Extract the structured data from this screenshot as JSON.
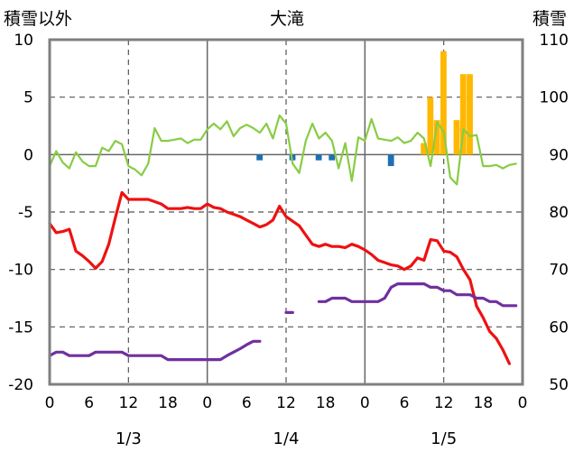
{
  "chart_data": {
    "type": "line",
    "title": "大滝",
    "left_axis_label": "積雪以外",
    "right_axis_label": "積雪",
    "left_ylim": [
      -20,
      10
    ],
    "left_ticks": [
      10,
      5,
      0,
      -5,
      -10,
      -15,
      -20
    ],
    "right_ylim": [
      50,
      110
    ],
    "right_ticks": [
      110,
      100,
      90,
      80,
      70,
      60,
      50
    ],
    "x_hours_range": [
      0,
      72
    ],
    "x_tick_labels": [
      "0",
      "6",
      "12",
      "18",
      "0",
      "6",
      "12",
      "18",
      "0",
      "6",
      "12",
      "18",
      "0"
    ],
    "date_labels": [
      {
        "label": "1/3",
        "hour": 12
      },
      {
        "label": "1/4",
        "hour": 36
      },
      {
        "label": "1/5",
        "hour": 60
      }
    ],
    "colors": {
      "red": "#ee1111",
      "green": "#88cc44",
      "purple": "#7030a0",
      "blue": "#1f6fb4",
      "orange": "#ffb800",
      "frame": "#7f7f7f"
    },
    "series": [
      {
        "color": "red",
        "axis": "left",
        "points": [
          [
            0,
            -6.0
          ],
          [
            1,
            -6.8
          ],
          [
            2,
            -6.7
          ],
          [
            3,
            -6.5
          ],
          [
            4,
            -8.4
          ],
          [
            5,
            -8.8
          ],
          [
            6,
            -9.3
          ],
          [
            7,
            -9.9
          ],
          [
            8,
            -9.3
          ],
          [
            9,
            -7.8
          ],
          [
            10,
            -5.5
          ],
          [
            11,
            -3.3
          ],
          [
            12,
            -3.9
          ],
          [
            13,
            -3.9
          ],
          [
            14,
            -3.9
          ],
          [
            15,
            -3.9
          ],
          [
            16,
            -4.1
          ],
          [
            17,
            -4.3
          ],
          [
            18,
            -4.7
          ],
          [
            19,
            -4.7
          ],
          [
            20,
            -4.7
          ],
          [
            21,
            -4.6
          ],
          [
            22,
            -4.7
          ],
          [
            23,
            -4.7
          ],
          [
            24,
            -4.3
          ],
          [
            25,
            -4.6
          ],
          [
            26,
            -4.7
          ],
          [
            27,
            -5.0
          ],
          [
            28,
            -5.2
          ],
          [
            29,
            -5.4
          ],
          [
            30,
            -5.7
          ],
          [
            31,
            -6.0
          ],
          [
            32,
            -6.3
          ],
          [
            33,
            -6.1
          ],
          [
            34,
            -5.7
          ],
          [
            35,
            -4.5
          ],
          [
            36,
            -5.4
          ],
          [
            37,
            -5.8
          ],
          [
            38,
            -6.2
          ],
          [
            39,
            -7.0
          ],
          [
            40,
            -7.8
          ],
          [
            41,
            -8.0
          ],
          [
            42,
            -7.8
          ],
          [
            43,
            -8.0
          ],
          [
            44,
            -8.0
          ],
          [
            45,
            -8.1
          ],
          [
            46,
            -7.8
          ],
          [
            47,
            -8.0
          ],
          [
            48,
            -8.3
          ],
          [
            49,
            -8.7
          ],
          [
            50,
            -9.2
          ],
          [
            51,
            -9.4
          ],
          [
            52,
            -9.6
          ],
          [
            53,
            -9.7
          ],
          [
            54,
            -10.0
          ],
          [
            55,
            -9.7
          ],
          [
            56,
            -9.0
          ],
          [
            57,
            -9.2
          ],
          [
            58,
            -7.4
          ],
          [
            59,
            -7.5
          ],
          [
            60,
            -8.4
          ],
          [
            61,
            -8.5
          ],
          [
            62,
            -8.9
          ],
          [
            63,
            -10.0
          ],
          [
            64,
            -10.9
          ],
          [
            65,
            -13.2
          ],
          [
            66,
            -14.2
          ],
          [
            67,
            -15.4
          ],
          [
            68,
            -16.0
          ],
          [
            69,
            -17.0
          ],
          [
            70,
            -18.2
          ]
        ]
      },
      {
        "color": "green",
        "axis": "left",
        "points": [
          [
            0,
            -1.0
          ],
          [
            1,
            0.3
          ],
          [
            2,
            -0.7
          ],
          [
            3,
            -1.2
          ],
          [
            4,
            0.2
          ],
          [
            5,
            -0.6
          ],
          [
            6,
            -1.0
          ],
          [
            7,
            -1.0
          ],
          [
            8,
            0.6
          ],
          [
            9,
            0.3
          ],
          [
            10,
            1.2
          ],
          [
            11,
            0.9
          ],
          [
            12,
            -1.0
          ],
          [
            13,
            -1.3
          ],
          [
            14,
            -1.8
          ],
          [
            15,
            -0.8
          ],
          [
            16,
            2.3
          ],
          [
            17,
            1.2
          ],
          [
            18,
            1.2
          ],
          [
            19,
            1.3
          ],
          [
            20,
            1.4
          ],
          [
            21,
            1.0
          ],
          [
            22,
            1.3
          ],
          [
            23,
            1.3
          ],
          [
            24,
            2.2
          ],
          [
            25,
            2.7
          ],
          [
            26,
            2.2
          ],
          [
            27,
            2.9
          ],
          [
            28,
            1.6
          ],
          [
            29,
            2.3
          ],
          [
            30,
            2.6
          ],
          [
            31,
            2.3
          ],
          [
            32,
            1.9
          ],
          [
            33,
            2.7
          ],
          [
            34,
            1.4
          ],
          [
            35,
            3.4
          ],
          [
            36,
            2.7
          ],
          [
            37,
            -0.8
          ],
          [
            38,
            -1.6
          ],
          [
            39,
            1.2
          ],
          [
            40,
            2.7
          ],
          [
            41,
            1.4
          ],
          [
            42,
            1.9
          ],
          [
            43,
            1.2
          ],
          [
            44,
            -1.2
          ],
          [
            45,
            1.0
          ],
          [
            46,
            -2.3
          ],
          [
            47,
            1.5
          ],
          [
            48,
            1.2
          ],
          [
            49,
            3.1
          ],
          [
            50,
            1.4
          ],
          [
            51,
            1.3
          ],
          [
            52,
            1.2
          ],
          [
            53,
            1.5
          ],
          [
            54,
            1.0
          ],
          [
            55,
            1.2
          ],
          [
            56,
            1.9
          ],
          [
            57,
            1.4
          ],
          [
            58,
            -1.0
          ],
          [
            59,
            2.8
          ],
          [
            60,
            2.0
          ],
          [
            61,
            -2.0
          ],
          [
            62,
            -2.6
          ],
          [
            63,
            2.2
          ],
          [
            64,
            1.6
          ],
          [
            65,
            1.7
          ],
          [
            66,
            -1.0
          ],
          [
            67,
            -1.0
          ],
          [
            68,
            -0.9
          ],
          [
            69,
            -1.2
          ],
          [
            70,
            -0.9
          ],
          [
            71,
            -0.8
          ]
        ]
      },
      {
        "color": "purple",
        "axis": "right",
        "segments": [
          [
            [
              0,
              55.0
            ],
            [
              1,
              55.6
            ],
            [
              2,
              55.6
            ],
            [
              3,
              55.0
            ],
            [
              4,
              55.0
            ],
            [
              5,
              55.0
            ],
            [
              6,
              55.0
            ],
            [
              7,
              55.6
            ],
            [
              8,
              55.6
            ],
            [
              9,
              55.6
            ],
            [
              10,
              55.6
            ],
            [
              11,
              55.6
            ],
            [
              12,
              55.0
            ],
            [
              13,
              55.0
            ],
            [
              14,
              55.0
            ],
            [
              15,
              55.0
            ],
            [
              16,
              55.0
            ],
            [
              17,
              55.0
            ],
            [
              18,
              54.3
            ],
            [
              19,
              54.3
            ],
            [
              20,
              54.3
            ],
            [
              21,
              54.3
            ],
            [
              22,
              54.3
            ],
            [
              23,
              54.3
            ],
            [
              24,
              54.3
            ],
            [
              25,
              54.3
            ],
            [
              26,
              54.3
            ],
            [
              27,
              55.0
            ],
            [
              28,
              55.6
            ],
            [
              29,
              56.2
            ],
            [
              30,
              56.9
            ],
            [
              31,
              57.5
            ],
            [
              32,
              57.5
            ]
          ],
          [
            [
              36,
              62.5
            ],
            [
              37,
              62.5
            ]
          ],
          [
            [
              41,
              64.4
            ],
            [
              42,
              64.4
            ],
            [
              43,
              65.0
            ],
            [
              44,
              65.0
            ],
            [
              45,
              65.0
            ],
            [
              46,
              64.4
            ],
            [
              47,
              64.4
            ],
            [
              48,
              64.4
            ],
            [
              49,
              64.4
            ],
            [
              50,
              64.4
            ],
            [
              51,
              65.0
            ],
            [
              52,
              66.9
            ],
            [
              53,
              67.5
            ],
            [
              54,
              67.5
            ],
            [
              55,
              67.5
            ],
            [
              56,
              67.5
            ],
            [
              57,
              67.5
            ],
            [
              58,
              66.9
            ],
            [
              59,
              66.9
            ],
            [
              60,
              66.3
            ],
            [
              61,
              66.3
            ],
            [
              62,
              65.6
            ],
            [
              63,
              65.6
            ],
            [
              64,
              65.6
            ],
            [
              65,
              65.0
            ],
            [
              66,
              65.0
            ],
            [
              67,
              64.4
            ],
            [
              68,
              64.4
            ],
            [
              69,
              63.7
            ],
            [
              70,
              63.7
            ],
            [
              71,
              63.7
            ]
          ]
        ]
      }
    ],
    "bars": [
      {
        "color": "blue",
        "values": [
          [
            32,
            -0.5
          ],
          [
            37,
            -0.5
          ],
          [
            41,
            -0.5
          ],
          [
            43,
            -0.5
          ],
          [
            52,
            -1.0
          ]
        ]
      },
      {
        "color": "orange",
        "values": [
          [
            57,
            1.0
          ],
          [
            58,
            5.0
          ],
          [
            59,
            3.0
          ],
          [
            60,
            9.0
          ],
          [
            62,
            3.0
          ],
          [
            63,
            7.0
          ],
          [
            64,
            7.0
          ]
        ]
      }
    ]
  }
}
